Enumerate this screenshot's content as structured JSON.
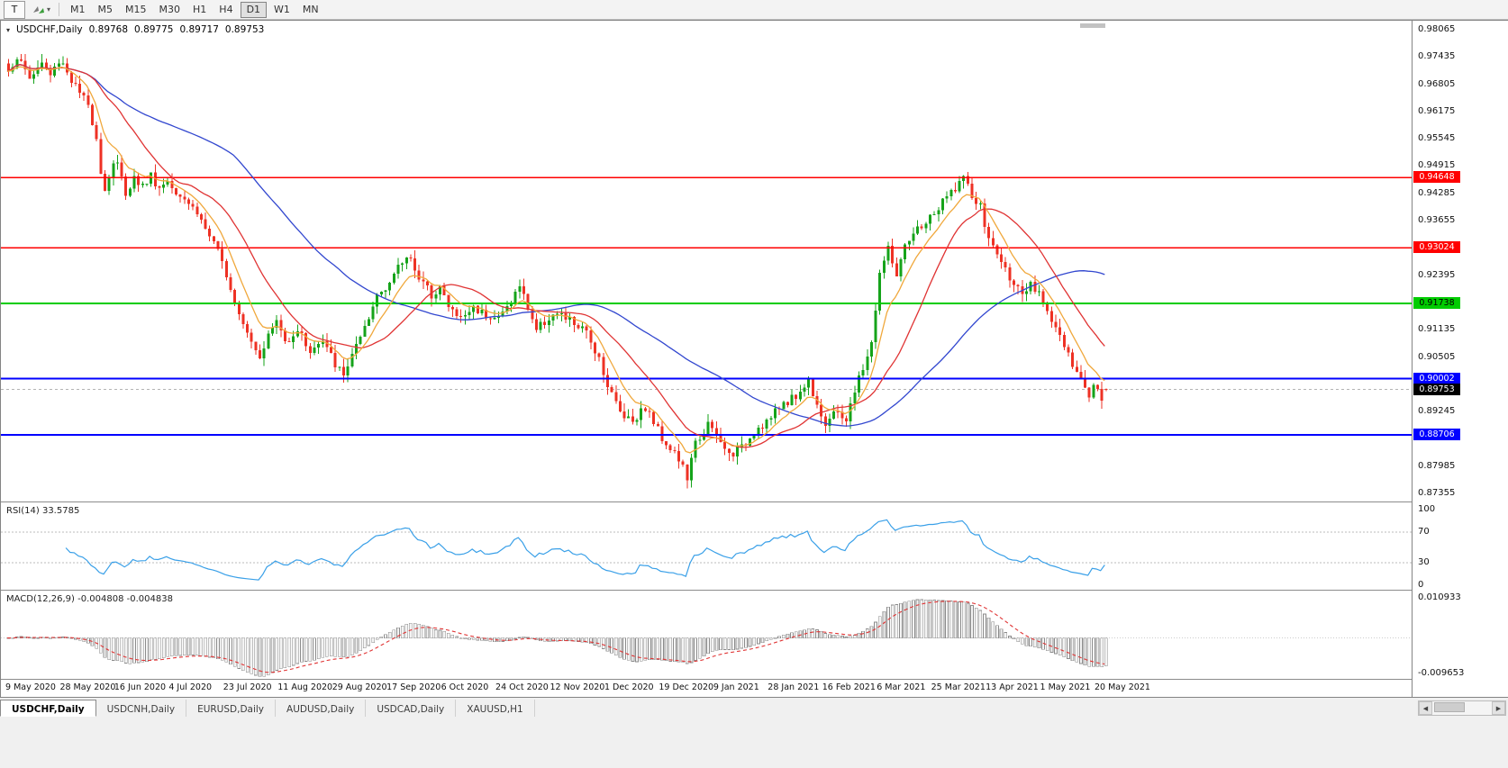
{
  "toolbar": {
    "template_button_label": "T",
    "timeframes": [
      "M1",
      "M5",
      "M15",
      "M30",
      "H1",
      "H4",
      "D1",
      "W1",
      "MN"
    ],
    "active_timeframe": "D1"
  },
  "chart_data": {
    "type": "candlestick",
    "symbol_title": "USDCHF,Daily",
    "ohlc_header": {
      "open": "0.89768",
      "high": "0.89775",
      "low": "0.89717",
      "close": "0.89753"
    },
    "y_axis": {
      "max": 0.98065,
      "min": 0.87355,
      "step": 0.0063
    },
    "x_labels": [
      "9 May 2020",
      "28 May 2020",
      "16 Jun 2020",
      "4 Jul 2020",
      "23 Jul 2020",
      "11 Aug 2020",
      "29 Aug 2020",
      "17 Sep 2020",
      "6 Oct 2020",
      "24 Oct 2020",
      "12 Nov 2020",
      "1 Dec 2020",
      "19 Dec 2020",
      "9 Jan 2021",
      "28 Jan 2021",
      "16 Feb 2021",
      "6 Mar 2021",
      "25 Mar 2021",
      "13 Apr 2021",
      "1 May 2021",
      "20 May 2021"
    ],
    "x_label_step": 13,
    "candle_count": 263,
    "seed": 1337,
    "noise": 0.0011,
    "wick": 0.0019,
    "price_anchors": [
      [
        0,
        0.971
      ],
      [
        2,
        0.9745
      ],
      [
        5,
        0.9695
      ],
      [
        8,
        0.973
      ],
      [
        10,
        0.97
      ],
      [
        12,
        0.9735
      ],
      [
        13,
        0.973
      ],
      [
        15,
        0.969
      ],
      [
        17,
        0.966
      ],
      [
        19,
        0.963
      ],
      [
        21,
        0.956
      ],
      [
        22,
        0.948
      ],
      [
        23,
        0.9435
      ],
      [
        25,
        0.95
      ],
      [
        26,
        0.9495
      ],
      [
        28,
        0.943
      ],
      [
        30,
        0.9465
      ],
      [
        32,
        0.9445
      ],
      [
        34,
        0.947
      ],
      [
        36,
        0.944
      ],
      [
        38,
        0.946
      ],
      [
        39,
        0.9445
      ],
      [
        42,
        0.942
      ],
      [
        45,
        0.9385
      ],
      [
        48,
        0.933
      ],
      [
        50,
        0.929
      ],
      [
        52,
        0.9245
      ],
      [
        54,
        0.918
      ],
      [
        56,
        0.9135
      ],
      [
        58,
        0.909
      ],
      [
        60,
        0.9055
      ],
      [
        62,
        0.91
      ],
      [
        64,
        0.9135
      ],
      [
        66,
        0.9085
      ],
      [
        69,
        0.9115
      ],
      [
        72,
        0.9065
      ],
      [
        75,
        0.9085
      ],
      [
        78,
        0.9035
      ],
      [
        80,
        0.9005
      ],
      [
        82,
        0.906
      ],
      [
        84,
        0.909
      ],
      [
        86,
        0.9135
      ],
      [
        88,
        0.9195
      ],
      [
        91,
        0.9225
      ],
      [
        94,
        0.927
      ],
      [
        96,
        0.9285
      ],
      [
        98,
        0.923
      ],
      [
        101,
        0.9195
      ],
      [
        103,
        0.9215
      ],
      [
        105,
        0.9165
      ],
      [
        108,
        0.914
      ],
      [
        111,
        0.9165
      ],
      [
        114,
        0.915
      ],
      [
        117,
        0.914
      ],
      [
        120,
        0.918
      ],
      [
        122,
        0.9215
      ],
      [
        126,
        0.9115
      ],
      [
        130,
        0.915
      ],
      [
        134,
        0.9135
      ],
      [
        138,
        0.9105
      ],
      [
        141,
        0.905
      ],
      [
        143,
        0.8985
      ],
      [
        146,
        0.8925
      ],
      [
        149,
        0.8905
      ],
      [
        152,
        0.8935
      ],
      [
        156,
        0.8865
      ],
      [
        159,
        0.883
      ],
      [
        161,
        0.8795
      ],
      [
        162,
        0.877
      ],
      [
        164,
        0.885
      ],
      [
        167,
        0.8895
      ],
      [
        169,
        0.8865
      ],
      [
        172,
        0.8825
      ],
      [
        175,
        0.884
      ],
      [
        178,
        0.888
      ],
      [
        182,
        0.891
      ],
      [
        185,
        0.8945
      ],
      [
        188,
        0.896
      ],
      [
        191,
        0.8995
      ],
      [
        195,
        0.8895
      ],
      [
        198,
        0.8925
      ],
      [
        200,
        0.8905
      ],
      [
        203,
        0.9
      ],
      [
        206,
        0.908
      ],
      [
        208,
        0.9245
      ],
      [
        210,
        0.93
      ],
      [
        212,
        0.924
      ],
      [
        214,
        0.93
      ],
      [
        217,
        0.9345
      ],
      [
        221,
        0.938
      ],
      [
        224,
        0.942
      ],
      [
        227,
        0.9455
      ],
      [
        228,
        0.9465
      ],
      [
        230,
        0.942
      ],
      [
        232,
        0.9395
      ],
      [
        234,
        0.932
      ],
      [
        236,
        0.929
      ],
      [
        238,
        0.925
      ],
      [
        240,
        0.9225
      ],
      [
        242,
        0.9185
      ],
      [
        244,
        0.9215
      ],
      [
        247,
        0.918
      ],
      [
        249,
        0.914
      ],
      [
        251,
        0.91
      ],
      [
        253,
        0.905
      ],
      [
        255,
        0.901
      ],
      [
        257,
        0.8985
      ],
      [
        258,
        0.896
      ],
      [
        259,
        0.8995
      ],
      [
        260,
        0.8985
      ],
      [
        261,
        0.896
      ],
      [
        262,
        0.89753
      ]
    ],
    "levels": [
      {
        "value": 0.94648,
        "label": "0.94648",
        "color": "#ff0000",
        "width": 1.5,
        "text": "#ffffff"
      },
      {
        "value": 0.93024,
        "label": "0.93024",
        "color": "#ff0000",
        "width": 1.5,
        "text": "#ffffff"
      },
      {
        "value": 0.91738,
        "label": "0.91738",
        "color": "#00cc00",
        "width": 2,
        "text": "#000000"
      },
      {
        "value": 0.90002,
        "label": "0.90002",
        "color": "#0000ff",
        "width": 2,
        "text": "#ffffff"
      },
      {
        "value": 0.88706,
        "label": "0.88706",
        "color": "#0000ff",
        "width": 2,
        "text": "#ffffff"
      }
    ],
    "current_price": {
      "value": 0.89753,
      "label": "0.89753"
    },
    "moving_averages": [
      {
        "name": "slow",
        "type": "sma",
        "period": 55,
        "color": "#3247cf"
      },
      {
        "name": "mid",
        "type": "sma",
        "period": 20,
        "color": "#e03434"
      },
      {
        "name": "fast",
        "type": "ema",
        "period": 9,
        "color": "#f0a83c"
      }
    ],
    "candle_colors": {
      "bull": "#15a31a",
      "bear": "#ee3124"
    },
    "rsi": {
      "label": "RSI(14) 33.5785",
      "period": 14,
      "line_color": "#3aa0e8",
      "ticks": [
        "100",
        "70",
        "30",
        "0"
      ],
      "tick_values": [
        100,
        70,
        30,
        0
      ],
      "level_lines": [
        70,
        30
      ]
    },
    "macd": {
      "label": "MACD(12,26,9) -0.004808 -0.004838",
      "fast": 12,
      "slow": 26,
      "signal": 9,
      "axis_max": 0.010933,
      "axis_min": -0.009653,
      "ticks": [
        "0.010933",
        "-0.009653"
      ],
      "hist_stroke": "#8c8c8c",
      "hist_fill": "#f4f4f4",
      "signal_color": "#e03434"
    }
  },
  "tabs": {
    "items": [
      "USDCHF,Daily",
      "USDCNH,Daily",
      "EURUSD,Daily",
      "AUDUSD,Daily",
      "USDCAD,Daily",
      "XAUUSD,H1"
    ],
    "active_index": 0
  }
}
